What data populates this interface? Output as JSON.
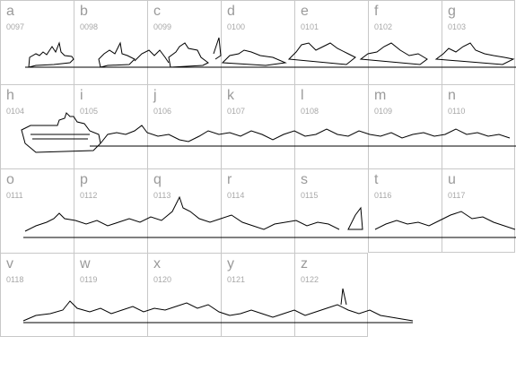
{
  "characters": [
    {
      "letter": "a",
      "code": "0097"
    },
    {
      "letter": "b",
      "code": "0098"
    },
    {
      "letter": "c",
      "code": "0099"
    },
    {
      "letter": "d",
      "code": "0100"
    },
    {
      "letter": "e",
      "code": "0101"
    },
    {
      "letter": "f",
      "code": "0102"
    },
    {
      "letter": "g",
      "code": "0103"
    },
    {
      "letter": "h",
      "code": "0104"
    },
    {
      "letter": "i",
      "code": "0105"
    },
    {
      "letter": "j",
      "code": "0106"
    },
    {
      "letter": "k",
      "code": "0107"
    },
    {
      "letter": "l",
      "code": "0108"
    },
    {
      "letter": "m",
      "code": "0109"
    },
    {
      "letter": "n",
      "code": "0110"
    },
    {
      "letter": "o",
      "code": "0111"
    },
    {
      "letter": "p",
      "code": "0112"
    },
    {
      "letter": "q",
      "code": "0113"
    },
    {
      "letter": "r",
      "code": "0114"
    },
    {
      "letter": "s",
      "code": "0115"
    },
    {
      "letter": "t",
      "code": "0116"
    },
    {
      "letter": "u",
      "code": "0117"
    },
    {
      "letter": "v",
      "code": "0118"
    },
    {
      "letter": "w",
      "code": "0119"
    },
    {
      "letter": "x",
      "code": "0120"
    },
    {
      "letter": "y",
      "code": "0121"
    },
    {
      "letter": "z",
      "code": "0122"
    }
  ],
  "colors": {
    "grid_line": "#c8c8c8",
    "label": "#9a9a9a",
    "glyph_stroke": "#000000"
  },
  "icons": {
    "glyph_art": "ship-silhouette-icon"
  }
}
